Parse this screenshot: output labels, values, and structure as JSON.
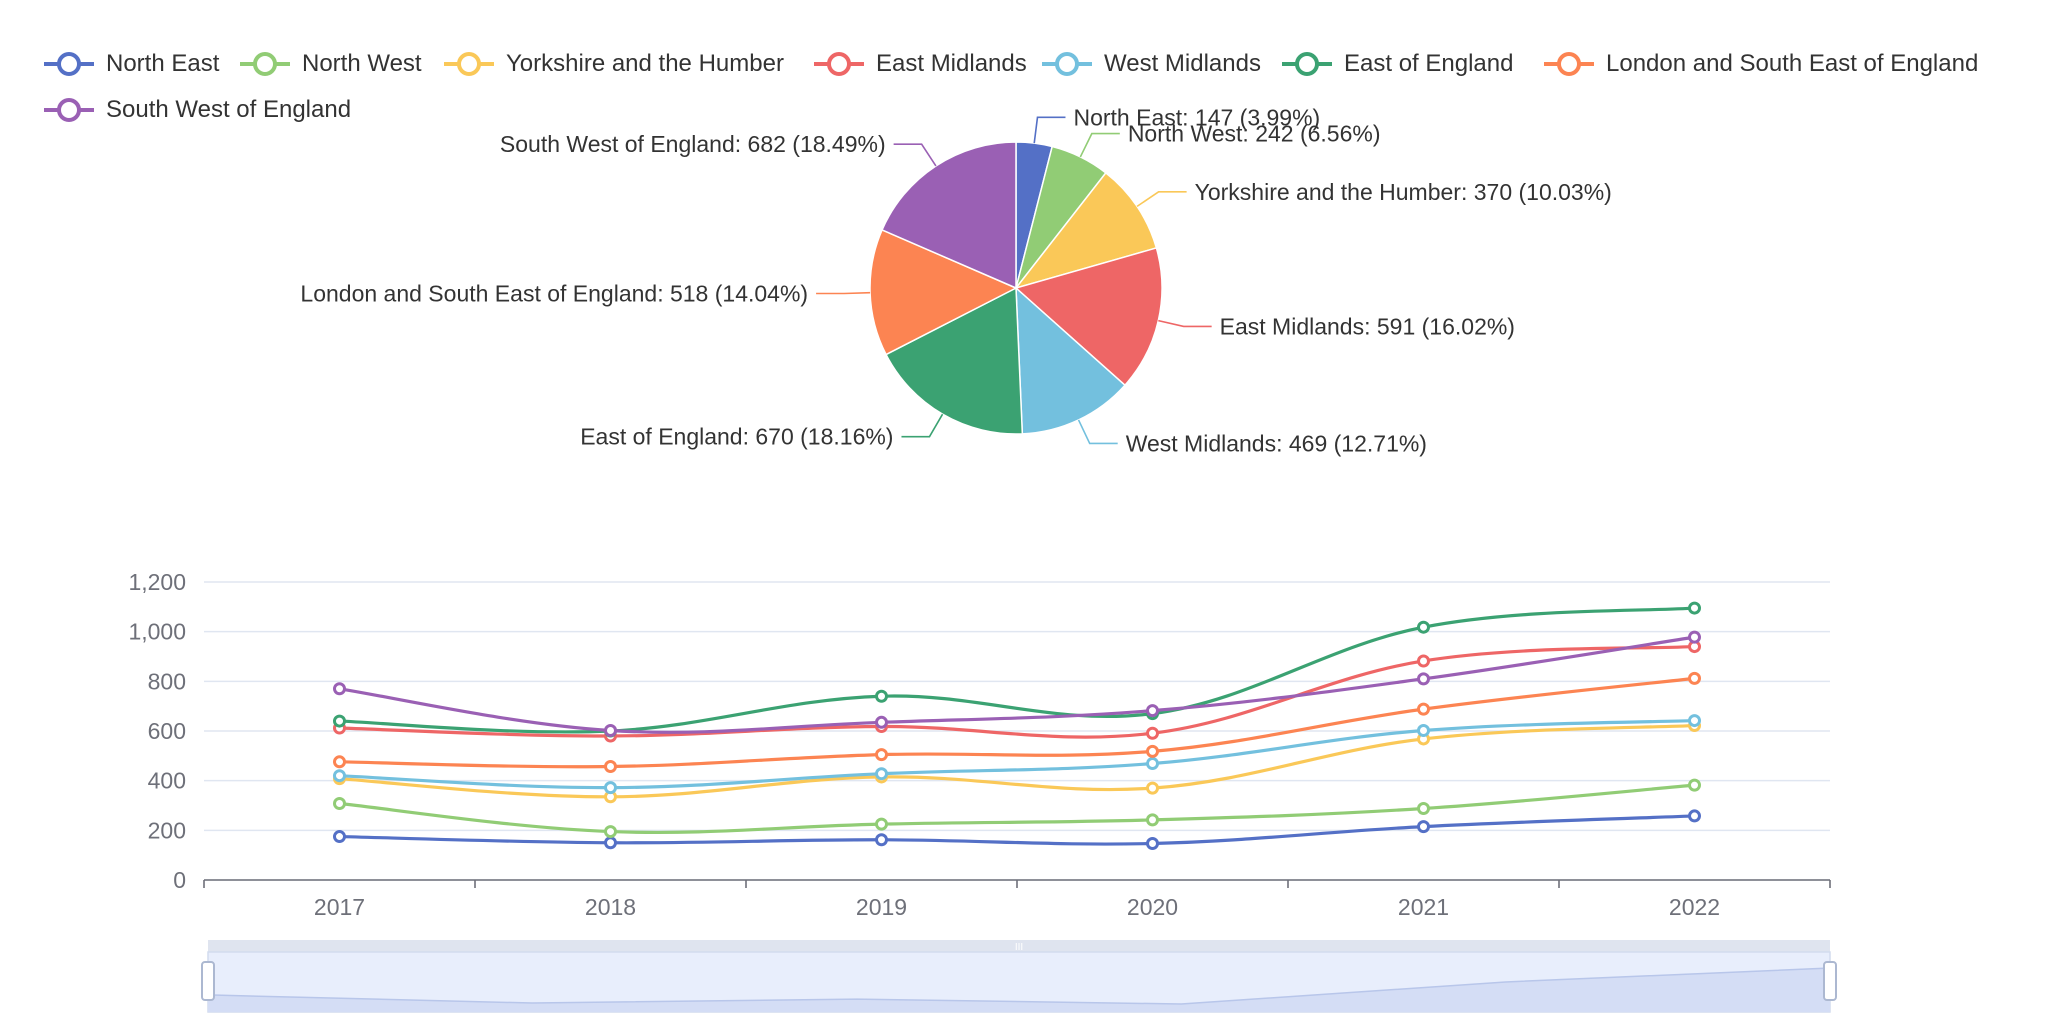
{
  "colors": {
    "North East": "#5470c6",
    "North West": "#91cc75",
    "Yorkshire and the Humber": "#fac858",
    "East Midlands": "#ee6666",
    "West Midlands": "#73c0de",
    "East of England": "#3ba272",
    "London and South East of England": "#fc8452",
    "South West of England": "#9a60b4"
  },
  "legend": [
    "North East",
    "North West",
    "Yorkshire and the Humber",
    "East Midlands",
    "West Midlands",
    "East of England",
    "London and South East of England",
    "South West of England"
  ],
  "chart_data": [
    {
      "type": "pie",
      "slices": [
        {
          "name": "North East",
          "value": 147,
          "label": "North East: 147 (3.99%)"
        },
        {
          "name": "North West",
          "value": 242,
          "label": "North West: 242 (6.56%)"
        },
        {
          "name": "Yorkshire and the Humber",
          "value": 370,
          "label": "Yorkshire and the Humber: 370 (10.03%)"
        },
        {
          "name": "East Midlands",
          "value": 591,
          "label": "East Midlands: 591 (16.02%)"
        },
        {
          "name": "West Midlands",
          "value": 469,
          "label": "West Midlands: 469 (12.71%)"
        },
        {
          "name": "East of England",
          "value": 670,
          "label": "East of England: 670 (18.16%)"
        },
        {
          "name": "London and South East of England",
          "value": 518,
          "label": "London and South East of England: 518 (14.04%)"
        },
        {
          "name": "South West of England",
          "value": 682,
          "label": "South West of England: 682 (18.49%)"
        }
      ]
    },
    {
      "type": "line",
      "smooth": true,
      "categories": [
        "2017",
        "2018",
        "2019",
        "2020",
        "2021",
        "2022"
      ],
      "ylim": [
        0,
        1200
      ],
      "yticks": [
        0,
        200,
        400,
        600,
        800,
        1000,
        1200
      ],
      "ytick_labels": [
        "0",
        "200",
        "400",
        "600",
        "800",
        "1,000",
        "1,200"
      ],
      "grid": true,
      "series": [
        {
          "name": "North East",
          "values": [
            175,
            150,
            162,
            147,
            215,
            258
          ]
        },
        {
          "name": "North West",
          "values": [
            308,
            195,
            225,
            242,
            288,
            382
          ]
        },
        {
          "name": "Yorkshire and the Humber",
          "values": [
            408,
            335,
            415,
            370,
            568,
            622
          ]
        },
        {
          "name": "East Midlands",
          "values": [
            612,
            580,
            618,
            591,
            882,
            940
          ]
        },
        {
          "name": "West Midlands",
          "values": [
            420,
            372,
            428,
            469,
            602,
            642
          ]
        },
        {
          "name": "East of England",
          "values": [
            640,
            600,
            740,
            670,
            1018,
            1095
          ]
        },
        {
          "name": "London and South East of England",
          "values": [
            476,
            457,
            505,
            518,
            688,
            812
          ]
        },
        {
          "name": "South West of England",
          "values": [
            770,
            602,
            635,
            682,
            810,
            978
          ]
        }
      ]
    }
  ],
  "data_zoom": {
    "handle_glyph": "III"
  }
}
